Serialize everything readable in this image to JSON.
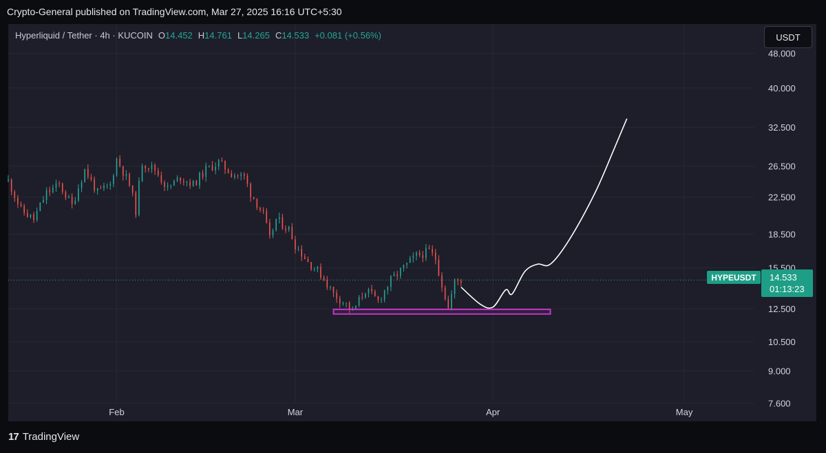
{
  "header": {
    "published": "Crypto-General published on TradingView.com, Mar 27, 2025 16:16 UTC+5:30"
  },
  "legend": {
    "symbol": "Hyperliquid / Tether · 4h · KUCOIN",
    "open_label": "O",
    "open": "14.452",
    "high_label": "H",
    "high": "14.761",
    "low_label": "L",
    "low": "14.265",
    "close_label": "C",
    "close": "14.533",
    "change": "+0.081 (+0.56%)"
  },
  "currency_button": "USDT",
  "price_tag": {
    "symbol": "HYPEUSDT",
    "price": "14.533",
    "countdown": "01:13:23"
  },
  "brand": {
    "mark": "17",
    "name": "TradingView"
  },
  "colors": {
    "up": "#26a69a",
    "down": "#ef5350",
    "support_box": "#c335c9",
    "drawing": "#ffffff",
    "background": "#1d1e29",
    "tag": "#1e9e86"
  },
  "chart_data": {
    "type": "candlestick",
    "scale": "log",
    "ylim": [
      6.9,
      56
    ],
    "y_ticks": [
      "48.000",
      "40.000",
      "32.500",
      "26.500",
      "22.500",
      "18.500",
      "15.500",
      "12.500",
      "10.500",
      "9.000",
      "7.600"
    ],
    "x_ticks": [
      "Feb",
      "Mar",
      "Apr",
      "May"
    ],
    "last_price": 14.533,
    "price_path": [
      [
        "Jan 15",
        24.5
      ],
      [
        "Jan 17",
        21.0
      ],
      [
        "Jan 19",
        20.0
      ],
      [
        "Jan 21",
        23.0
      ],
      [
        "Jan 23",
        24.0
      ],
      [
        "Jan 25",
        21.5
      ],
      [
        "Jan 27",
        26.0
      ],
      [
        "Jan 29",
        23.0
      ],
      [
        "Jan 31",
        24.0
      ],
      [
        "Feb 1",
        27.5
      ],
      [
        "Feb 3",
        24.0
      ],
      [
        "Feb 4",
        21.0
      ],
      [
        "Feb 5",
        27.0
      ],
      [
        "Feb 7",
        26.0
      ],
      [
        "Feb 9",
        23.5
      ],
      [
        "Feb 11",
        25.0
      ],
      [
        "Feb 13",
        24.0
      ],
      [
        "Feb 15",
        26.0
      ],
      [
        "Feb 17",
        27.0
      ],
      [
        "Feb 19",
        25.5
      ],
      [
        "Feb 21",
        25.0
      ],
      [
        "Feb 22",
        23.0
      ],
      [
        "Feb 24",
        20.5
      ],
      [
        "Feb 25",
        18.0
      ],
      [
        "Feb 26",
        20.0
      ],
      [
        "Feb 28",
        19.0
      ],
      [
        "Mar 1",
        17.5
      ],
      [
        "Mar 3",
        16.0
      ],
      [
        "Mar 5",
        15.0
      ],
      [
        "Mar 7",
        13.5
      ],
      [
        "Mar 9",
        12.8
      ],
      [
        "Mar 10",
        12.3
      ],
      [
        "Mar 12",
        13.8
      ],
      [
        "Mar 14",
        13.0
      ],
      [
        "Mar 16",
        14.5
      ],
      [
        "Mar 18",
        15.5
      ],
      [
        "Mar 20",
        16.5
      ],
      [
        "Mar 22",
        16.9
      ],
      [
        "Mar 23",
        16.3
      ],
      [
        "Mar 24",
        14.2
      ],
      [
        "Mar 25",
        12.5
      ],
      [
        "Mar 26",
        14.4
      ],
      [
        "Mar 27",
        14.533
      ]
    ],
    "support_zone": {
      "from": "Mar 7",
      "to": "Apr 10",
      "low": 12.15,
      "high": 12.45
    },
    "projection": [
      [
        "Mar 27",
        14.0
      ],
      [
        "Mar 30",
        12.8
      ],
      [
        "Apr 1",
        12.6
      ],
      [
        "Apr 3",
        13.8
      ],
      [
        "Apr 4",
        13.5
      ],
      [
        "Apr 6",
        15.2
      ],
      [
        "Apr 8",
        15.8
      ],
      [
        "Apr 10",
        15.8
      ],
      [
        "Apr 13",
        18.0
      ],
      [
        "Apr 17",
        23.0
      ],
      [
        "Apr 20",
        29.0
      ],
      [
        "Apr 22",
        34.0
      ]
    ]
  }
}
